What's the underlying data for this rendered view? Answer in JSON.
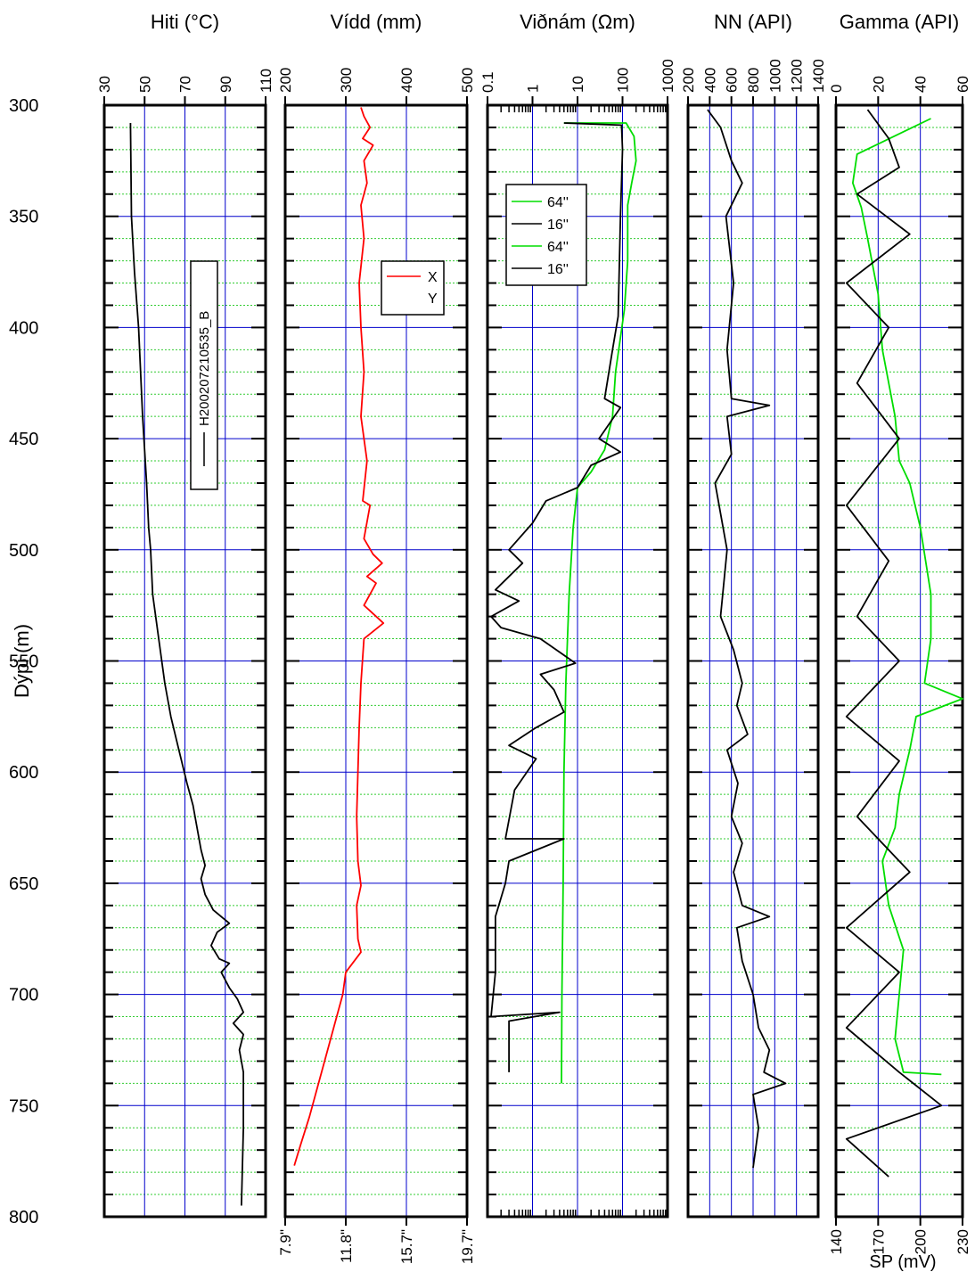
{
  "depth_axis": {
    "label": "Dýpi (m)",
    "ticks": [
      300,
      350,
      400,
      450,
      500,
      550,
      600,
      650,
      700,
      750,
      800
    ],
    "range": [
      300,
      800
    ]
  },
  "colors": {
    "grid_major": "#0000cc",
    "grid_minor": "#33cc33",
    "black": "#000000",
    "red": "#ff0000",
    "green": "#00dd00"
  },
  "chart_data": [
    {
      "type": "line",
      "title": "Hiti (°C)",
      "xlabel": "Hiti (°C)",
      "ylabel": "Dýpi (m)",
      "xlim": [
        30,
        110
      ],
      "ylim": [
        300,
        800
      ],
      "x_ticks": [
        "30",
        "50",
        "70",
        "90",
        "110"
      ],
      "legend": [
        "H20020721053​5_B"
      ],
      "series": [
        {
          "name": "H200207210535_B",
          "color": "#000000",
          "points": [
            [
              43,
              308
            ],
            [
              43.5,
              350
            ],
            [
              45,
              375
            ],
            [
              47,
              400
            ],
            [
              49,
              440
            ],
            [
              51,
              470
            ],
            [
              52,
              490
            ],
            [
              53,
              500
            ],
            [
              54,
              520
            ],
            [
              57,
              540
            ],
            [
              60,
              560
            ],
            [
              63,
              575
            ],
            [
              67,
              590
            ],
            [
              71,
              605
            ],
            [
              74,
              615
            ],
            [
              76,
              625
            ],
            [
              78,
              635
            ],
            [
              80,
              642
            ],
            [
              78,
              648
            ],
            [
              80,
              655
            ],
            [
              84,
              662
            ],
            [
              92,
              668
            ],
            [
              86,
              672
            ],
            [
              83,
              678
            ],
            [
              87,
              684
            ],
            [
              92,
              686
            ],
            [
              88,
              690
            ],
            [
              92,
              697
            ],
            [
              96,
              702
            ],
            [
              99,
              708
            ],
            [
              94,
              713
            ],
            [
              99,
              718
            ],
            [
              97,
              725
            ],
            [
              99,
              735
            ],
            [
              99,
              760
            ],
            [
              98,
              795
            ]
          ]
        }
      ]
    },
    {
      "type": "line",
      "title": "Vídd (mm)",
      "xlim": [
        200,
        500
      ],
      "x_ticks": [
        "200",
        "300",
        "400",
        "500"
      ],
      "bottom_ticks": [
        "7.9\"",
        "11.8\"",
        "15.7\"",
        "19.7\""
      ],
      "legend": [
        "X",
        "Y"
      ],
      "series": [
        {
          "name": "X",
          "color": "#ff0000",
          "points": [
            [
              325,
              301
            ],
            [
              330,
              305
            ],
            [
              340,
              310
            ],
            [
              328,
              315
            ],
            [
              345,
              318
            ],
            [
              330,
              325
            ],
            [
              335,
              335
            ],
            [
              325,
              345
            ],
            [
              330,
              360
            ],
            [
              322,
              380
            ],
            [
              325,
              400
            ],
            [
              330,
              420
            ],
            [
              325,
              440
            ],
            [
              335,
              460
            ],
            [
              328,
              478
            ],
            [
              340,
              480
            ],
            [
              330,
              495
            ],
            [
              345,
              502
            ],
            [
              360,
              506
            ],
            [
              335,
              512
            ],
            [
              350,
              515
            ],
            [
              330,
              525
            ],
            [
              362,
              533
            ],
            [
              330,
              540
            ],
            [
              325,
              560
            ],
            [
              322,
              580
            ],
            [
              320,
              600
            ],
            [
              318,
              620
            ],
            [
              320,
              640
            ],
            [
              325,
              651
            ],
            [
              318,
              660
            ],
            [
              320,
              675
            ],
            [
              325,
              681
            ],
            [
              300,
              690
            ],
            [
              295,
              700
            ],
            [
              285,
              710
            ],
            [
              270,
              725
            ],
            [
              255,
              740
            ],
            [
              240,
              755
            ],
            [
              225,
              768
            ],
            [
              215,
              777
            ]
          ]
        },
        {
          "name": "Y",
          "color": "#000000",
          "points": []
        }
      ]
    },
    {
      "type": "line",
      "title": "Viðnám (Ωm)",
      "xscale": "log",
      "xlim": [
        0.1,
        1000
      ],
      "x_ticks": [
        "0.1",
        "1",
        "10",
        "100",
        "1000"
      ],
      "legend": [
        "64''",
        "16''",
        "64''",
        "16''"
      ],
      "series": [
        {
          "name": "64''",
          "color": "#00dd00",
          "points": [
            [
              5,
              308
            ],
            [
              120,
              308
            ],
            [
              180,
              314
            ],
            [
              200,
              325
            ],
            [
              160,
              335
            ],
            [
              130,
              345
            ],
            [
              130,
              370
            ],
            [
              110,
              392
            ],
            [
              70,
              420
            ],
            [
              60,
              440
            ],
            [
              40,
              455
            ],
            [
              20,
              465
            ],
            [
              10,
              472
            ],
            [
              8,
              490
            ],
            [
              6.5,
              520
            ],
            [
              5.5,
              560
            ],
            [
              5,
              600
            ],
            [
              4.8,
              650
            ],
            [
              4.5,
              700
            ],
            [
              4.4,
              740
            ]
          ]
        },
        {
          "name": "16''",
          "color": "#000000",
          "points": [
            [
              5,
              308
            ],
            [
              95,
              309
            ],
            [
              100,
              320
            ],
            [
              90,
              350
            ],
            [
              80,
              395
            ],
            [
              60,
              410
            ],
            [
              40,
              432
            ],
            [
              90,
              436
            ],
            [
              30,
              450
            ],
            [
              90,
              456
            ],
            [
              20,
              462
            ],
            [
              10,
              472
            ],
            [
              2,
              478
            ],
            [
              1,
              488
            ],
            [
              0.3,
              500
            ],
            [
              0.6,
              506
            ],
            [
              0.15,
              518
            ],
            [
              0.5,
              523
            ],
            [
              0.12,
              530
            ],
            [
              0.2,
              535
            ],
            [
              1.5,
              540
            ],
            [
              9,
              551
            ],
            [
              1.5,
              556
            ],
            [
              3,
              563
            ],
            [
              5,
              573
            ],
            [
              1.2,
              580
            ],
            [
              0.3,
              588
            ],
            [
              1.2,
              594
            ],
            [
              0.4,
              608
            ],
            [
              0.25,
              630
            ],
            [
              5,
              630
            ],
            [
              0.3,
              640
            ],
            [
              0.25,
              650
            ],
            [
              0.15,
              665
            ],
            [
              0.15,
              690
            ],
            [
              0.12,
              710
            ],
            [
              4,
              708
            ],
            [
              0.3,
              712
            ],
            [
              0.3,
              735
            ]
          ]
        }
      ]
    },
    {
      "type": "line",
      "title": "NN (API)",
      "xlim": [
        200,
        1400
      ],
      "x_ticks": [
        "200",
        "400",
        "600",
        "800",
        "1000",
        "1200",
        "1400"
      ],
      "series": [
        {
          "name": "NN",
          "color": "#000000",
          "points": [
            [
              380,
              302
            ],
            [
              500,
              310
            ],
            [
              600,
              325
            ],
            [
              700,
              335
            ],
            [
              550,
              350
            ],
            [
              620,
              380
            ],
            [
              560,
              410
            ],
            [
              600,
              432
            ],
            [
              950,
              435
            ],
            [
              560,
              440
            ],
            [
              600,
              457
            ],
            [
              450,
              470
            ],
            [
              560,
              500
            ],
            [
              500,
              530
            ],
            [
              620,
              545
            ],
            [
              700,
              560
            ],
            [
              650,
              570
            ],
            [
              750,
              583
            ],
            [
              560,
              590
            ],
            [
              660,
              605
            ],
            [
              600,
              620
            ],
            [
              700,
              632
            ],
            [
              620,
              645
            ],
            [
              700,
              660
            ],
            [
              950,
              665
            ],
            [
              650,
              670
            ],
            [
              700,
              685
            ],
            [
              800,
              700
            ],
            [
              850,
              715
            ],
            [
              950,
              725
            ],
            [
              900,
              735
            ],
            [
              1100,
              740
            ],
            [
              800,
              745
            ],
            [
              850,
              760
            ],
            [
              800,
              778
            ]
          ]
        }
      ]
    },
    {
      "type": "line",
      "title": "Gamma (API)",
      "xlim": [
        0,
        60
      ],
      "x_ticks": [
        "0",
        "20",
        "40",
        "60"
      ],
      "bottom_ticks": [
        "140",
        "170",
        "200",
        "230"
      ],
      "xlabel_bottom": "SP (mV)",
      "series": [
        {
          "name": "SP",
          "color": "#00dd00",
          "points": [
            [
              45,
              306
            ],
            [
              10,
              322
            ],
            [
              8,
              335
            ],
            [
              12,
              346
            ],
            [
              15,
              360
            ],
            [
              20,
              385
            ],
            [
              22,
              410
            ],
            [
              28,
              440
            ],
            [
              30,
              460
            ],
            [
              35,
              470
            ],
            [
              40,
              490
            ],
            [
              45,
              520
            ],
            [
              45,
              540
            ],
            [
              42,
              560
            ],
            [
              60,
              567
            ],
            [
              38,
              575
            ],
            [
              35,
              590
            ],
            [
              30,
              610
            ],
            [
              28,
              625
            ],
            [
              22,
              640
            ],
            [
              25,
              660
            ],
            [
              32,
              680
            ],
            [
              30,
              700
            ],
            [
              28,
              720
            ],
            [
              32,
              735
            ],
            [
              50,
              736
            ]
          ]
        },
        {
          "name": "Gamma",
          "color": "#000000",
          "points": [
            [
              15,
              302
            ],
            [
              25,
              315
            ],
            [
              30,
              328
            ],
            [
              10,
              340
            ],
            [
              35,
              358
            ],
            [
              5,
              380
            ],
            [
              25,
              400
            ],
            [
              10,
              425
            ],
            [
              30,
              450
            ],
            [
              5,
              480
            ],
            [
              25,
              505
            ],
            [
              10,
              530
            ],
            [
              30,
              550
            ],
            [
              5,
              575
            ],
            [
              30,
              595
            ],
            [
              10,
              620
            ],
            [
              35,
              645
            ],
            [
              5,
              670
            ],
            [
              30,
              690
            ],
            [
              5,
              715
            ],
            [
              30,
              735
            ],
            [
              50,
              750
            ],
            [
              5,
              765
            ],
            [
              25,
              782
            ]
          ]
        }
      ]
    }
  ]
}
